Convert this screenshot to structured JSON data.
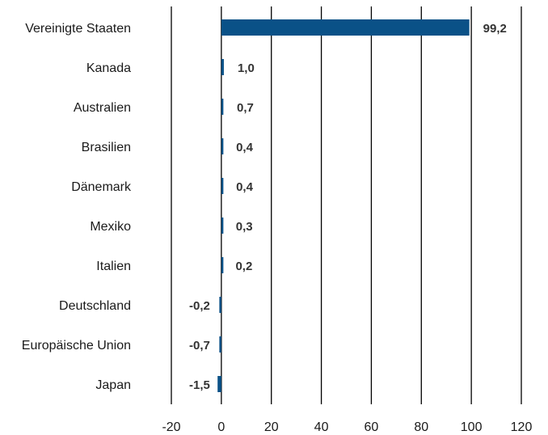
{
  "chart_data": {
    "type": "bar",
    "orientation": "horizontal",
    "categories": [
      "Vereinigte Staaten",
      "Kanada",
      "Australien",
      "Brasilien",
      "Dänemark",
      "Mexiko",
      "Italien",
      "Deutschland",
      "Europäische Union",
      "Japan"
    ],
    "values": [
      99.2,
      1.0,
      0.7,
      0.4,
      0.4,
      0.3,
      0.2,
      -0.2,
      -0.7,
      -1.5
    ],
    "value_labels": [
      "99,2",
      "1,0",
      "0,7",
      "0,4",
      "0,4",
      "0,3",
      "0,2",
      "-0,2",
      "-0,7",
      "-1,5"
    ],
    "xlim": [
      -20,
      120
    ],
    "xticks": [
      -20,
      0,
      20,
      40,
      60,
      80,
      100,
      120
    ],
    "xtick_labels": [
      "-20",
      "0",
      "20",
      "40",
      "60",
      "80",
      "100",
      "120"
    ],
    "grid": "vertical",
    "legend": "none",
    "bar_color": "#0a5187",
    "title": "",
    "xlabel": "",
    "ylabel": ""
  }
}
